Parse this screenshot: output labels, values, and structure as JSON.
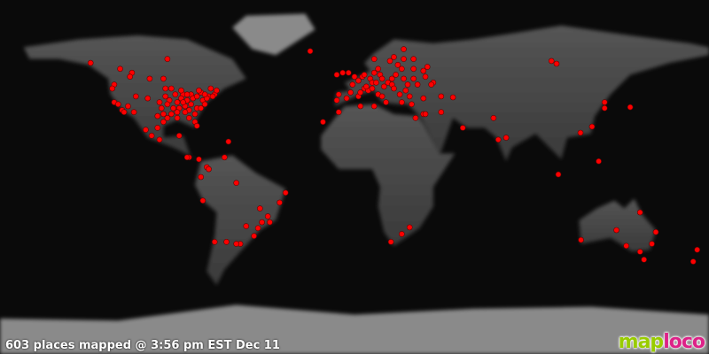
{
  "status_text": "603 places mapped @ 3:56 pm EST Dec 11",
  "logo": {
    "part1": "map",
    "part2": "loco"
  },
  "colors": {
    "marker": "#ff0000",
    "logo_green": "#99cc00",
    "logo_magenta": "#dd2288",
    "background": "#0a0a0a"
  },
  "map": {
    "projection": "equirectangular",
    "marker_shape": "circle"
  },
  "points": [
    [
      -134,
      58
    ],
    [
      -122,
      47
    ],
    [
      -123,
      45
    ],
    [
      -122,
      38
    ],
    [
      -118,
      34
    ],
    [
      -117,
      33
    ],
    [
      -112,
      33
    ],
    [
      -105,
      40
    ],
    [
      -111,
      41
    ],
    [
      -115,
      36
    ],
    [
      -120,
      37
    ],
    [
      -119,
      55
    ],
    [
      -113,
      53
    ],
    [
      -114,
      51
    ],
    [
      -104,
      50
    ],
    [
      -97,
      50
    ],
    [
      -95,
      60
    ],
    [
      -97,
      32
    ],
    [
      -95,
      30
    ],
    [
      -90,
      30
    ],
    [
      -84,
      34
    ],
    [
      -81,
      28
    ],
    [
      -80,
      26
    ],
    [
      -77,
      39
    ],
    [
      -74,
      41
    ],
    [
      -71,
      42
    ],
    [
      -75,
      40
    ],
    [
      -87,
      42
    ],
    [
      -83,
      42
    ],
    [
      -93,
      45
    ],
    [
      -90,
      38
    ],
    [
      -94,
      39
    ],
    [
      -86,
      36
    ],
    [
      -80,
      35
    ],
    [
      -82,
      40
    ],
    [
      -88,
      44
    ],
    [
      -96,
      41
    ],
    [
      -98,
      35
    ],
    [
      -85,
      39
    ],
    [
      -78,
      43
    ],
    [
      -73,
      45
    ],
    [
      -79,
      44
    ],
    [
      -76,
      37
    ],
    [
      -81,
      32
    ],
    [
      -86,
      33
    ],
    [
      -92,
      35
    ],
    [
      -89,
      35
    ],
    [
      -100,
      31
    ],
    [
      -97,
      28
    ],
    [
      -84,
      30
    ],
    [
      -80,
      41
    ],
    [
      -76,
      42
    ],
    [
      -70,
      44
    ],
    [
      -88,
      40
    ],
    [
      -91,
      42
    ],
    [
      -95,
      37
    ],
    [
      -83,
      37
    ],
    [
      -78,
      35
    ],
    [
      -72,
      41
    ],
    [
      -87,
      38
    ],
    [
      -85,
      42
    ],
    [
      -93,
      32
    ],
    [
      -90,
      33
    ],
    [
      -99,
      38
    ],
    [
      -96,
      45
    ],
    [
      -99,
      19
    ],
    [
      -103,
      21
    ],
    [
      -100,
      25
    ],
    [
      -106,
      24
    ],
    [
      -89,
      21
    ],
    [
      -84,
      10
    ],
    [
      -79,
      9
    ],
    [
      -85,
      10
    ],
    [
      -64,
      18
    ],
    [
      -66,
      10
    ],
    [
      -75,
      5
    ],
    [
      -74,
      4
    ],
    [
      -78,
      0
    ],
    [
      -77,
      -12
    ],
    [
      -71,
      -33
    ],
    [
      -65,
      -33
    ],
    [
      -58,
      -34
    ],
    [
      -60,
      -34
    ],
    [
      -47,
      -23
    ],
    [
      -43,
      -23
    ],
    [
      -49,
      -26
    ],
    [
      -51,
      -30
    ],
    [
      -44,
      -20
    ],
    [
      -38,
      -13
    ],
    [
      -35,
      -8
    ],
    [
      -48,
      -16
    ],
    [
      -60,
      -3
    ],
    [
      -55,
      -25
    ],
    [
      0,
      51
    ],
    [
      2,
      49
    ],
    [
      -3,
      53
    ],
    [
      -6,
      53
    ],
    [
      -9,
      52
    ],
    [
      -4,
      40
    ],
    [
      -9,
      39
    ],
    [
      -8,
      42
    ],
    [
      2,
      41
    ],
    [
      5,
      45
    ],
    [
      7,
      44
    ],
    [
      4,
      51
    ],
    [
      5,
      52
    ],
    [
      8,
      50
    ],
    [
      9,
      48
    ],
    [
      13,
      52
    ],
    [
      11,
      48
    ],
    [
      10,
      53
    ],
    [
      12,
      55
    ],
    [
      18,
      59
    ],
    [
      10,
      60
    ],
    [
      25,
      60
    ],
    [
      24,
      55
    ],
    [
      21,
      52
    ],
    [
      19,
      50
    ],
    [
      17,
      48
    ],
    [
      14,
      50
    ],
    [
      19,
      47
    ],
    [
      26,
      44
    ],
    [
      23,
      42
    ],
    [
      24,
      38
    ],
    [
      28,
      41
    ],
    [
      12,
      42
    ],
    [
      9,
      45
    ],
    [
      14,
      41
    ],
    [
      16,
      38
    ],
    [
      30,
      50
    ],
    [
      37,
      56
    ],
    [
      30,
      60
    ],
    [
      32,
      47
    ],
    [
      35,
      54
    ],
    [
      40,
      48
    ],
    [
      44,
      41
    ],
    [
      -1,
      47
    ],
    [
      3,
      43
    ],
    [
      -2,
      43
    ],
    [
      6,
      46
    ],
    [
      15,
      46
    ],
    [
      20,
      45
    ],
    [
      27,
      47
    ],
    [
      25,
      50
    ],
    [
      22,
      57
    ],
    [
      36,
      51
    ],
    [
      39,
      47
    ],
    [
      35,
      40
    ],
    [
      29,
      37
    ],
    [
      50,
      40.5
    ],
    [
      20,
      61
    ],
    [
      25,
      65
    ],
    [
      30,
      55
    ],
    [
      -16,
      28
    ],
    [
      -8,
      33
    ],
    [
      3,
      36
    ],
    [
      10,
      36
    ],
    [
      31,
      30
    ],
    [
      35,
      32
    ],
    [
      44,
      33
    ],
    [
      36,
      32
    ],
    [
      55,
      25
    ],
    [
      70.6,
      30
    ],
    [
      73,
      19
    ],
    [
      77,
      20
    ],
    [
      -22.5,
      64
    ],
    [
      100,
      59
    ],
    [
      102.6,
      57.6
    ],
    [
      120.6,
      25.6
    ],
    [
      114.75,
      22.5
    ],
    [
      127,
      38
    ],
    [
      127,
      35
    ],
    [
      140,
      35.5
    ],
    [
      124,
      8
    ],
    [
      103.5,
      1.3
    ],
    [
      28,
      -25.6
    ],
    [
      24,
      -29
    ],
    [
      18.5,
      -33
    ],
    [
      151,
      -34
    ],
    [
      145,
      -18
    ],
    [
      115,
      -32
    ],
    [
      138,
      -35
    ],
    [
      145,
      -38
    ],
    [
      147,
      -42
    ],
    [
      153,
      -28
    ],
    [
      133,
      -27
    ],
    [
      174,
      -37
    ],
    [
      172,
      -43
    ]
  ]
}
